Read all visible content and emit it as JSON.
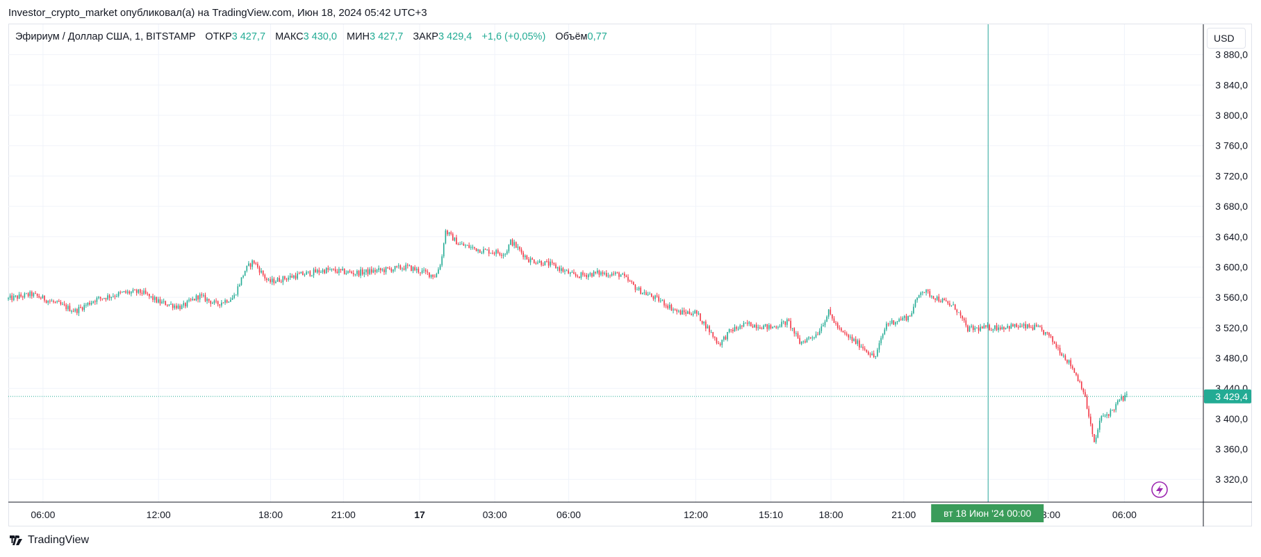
{
  "header": {
    "text": "Investor_crypto_market опубликовал(а) на TradingView.com, Июн 18, 2024 05:42 UTC+3"
  },
  "legend": {
    "symbol": "Эфириум / Доллар США, 1, BITSTAMP",
    "open_label": "ОТКР",
    "open": "3 427,7",
    "high_label": "МАКС",
    "high": "3 430,0",
    "low_label": "МИН",
    "low": "3 427,7",
    "close_label": "ЗАКР",
    "close": "3 429,4",
    "change": "+1,6 (+0,05%)",
    "volume_label": "Объём",
    "volume": "0,77"
  },
  "currency": "USD",
  "footer": {
    "brand": "TradingView"
  },
  "colors": {
    "up": "#22ab94",
    "down": "#f23645",
    "crosshair": "#26a69a",
    "grid": "#f0f3fa",
    "current_price": "#22ab94",
    "lightning": "#9c27b0"
  },
  "icons": {
    "lightning": "lightning-icon",
    "logo": "tradingview-logo-icon"
  },
  "chart_data": {
    "type": "candlestick",
    "title": "Эфириум / Доллар США, 1, BITSTAMP",
    "y_ticks": [
      "3 880,0",
      "3 840,0",
      "3 800,0",
      "3 760,0",
      "3 720,0",
      "3 680,0",
      "3 640,0",
      "3 600,0",
      "3 560,0",
      "3 520,0",
      "3 480,0",
      "3 440,0",
      "3 400,0",
      "3 360,0",
      "3 320,0"
    ],
    "y_tick_values": [
      3880,
      3840,
      3800,
      3760,
      3720,
      3680,
      3640,
      3600,
      3560,
      3520,
      3480,
      3440,
      3400,
      3360,
      3320
    ],
    "ylim": [
      3290,
      3920
    ],
    "x_ticks": [
      {
        "label": "06:00",
        "t": 0.03
      },
      {
        "label": "12:00",
        "t": 0.13
      },
      {
        "label": "18:00",
        "t": 0.227
      },
      {
        "label": "21:00",
        "t": 0.29
      },
      {
        "label": "17",
        "t": 0.356,
        "bold": true
      },
      {
        "label": "03:00",
        "t": 0.421
      },
      {
        "label": "06:00",
        "t": 0.485
      },
      {
        "label": "12:00",
        "t": 0.595
      },
      {
        "label": "15:10",
        "t": 0.66
      },
      {
        "label": "18:00",
        "t": 0.712
      },
      {
        "label": "21:00",
        "t": 0.775
      },
      {
        "label": "03:00",
        "t": 0.9
      },
      {
        "label": "06:00",
        "t": 0.966
      }
    ],
    "price_path": [
      [
        0.0,
        3558
      ],
      [
        0.02,
        3564
      ],
      [
        0.04,
        3553
      ],
      [
        0.058,
        3542
      ],
      [
        0.075,
        3557
      ],
      [
        0.1,
        3566
      ],
      [
        0.115,
        3567
      ],
      [
        0.13,
        3554
      ],
      [
        0.15,
        3547
      ],
      [
        0.165,
        3562
      ],
      [
        0.18,
        3551
      ],
      [
        0.195,
        3560
      ],
      [
        0.205,
        3596
      ],
      [
        0.212,
        3608
      ],
      [
        0.225,
        3580
      ],
      [
        0.25,
        3589
      ],
      [
        0.275,
        3596
      ],
      [
        0.3,
        3592
      ],
      [
        0.325,
        3596
      ],
      [
        0.345,
        3600
      ],
      [
        0.37,
        3588
      ],
      [
        0.375,
        3610
      ],
      [
        0.378,
        3648
      ],
      [
        0.39,
        3630
      ],
      [
        0.41,
        3622
      ],
      [
        0.43,
        3618
      ],
      [
        0.435,
        3634
      ],
      [
        0.45,
        3610
      ],
      [
        0.47,
        3603
      ],
      [
        0.49,
        3588
      ],
      [
        0.51,
        3592
      ],
      [
        0.53,
        3590
      ],
      [
        0.545,
        3570
      ],
      [
        0.565,
        3555
      ],
      [
        0.58,
        3540
      ],
      [
        0.595,
        3540
      ],
      [
        0.605,
        3520
      ],
      [
        0.615,
        3498
      ],
      [
        0.625,
        3516
      ],
      [
        0.64,
        3525
      ],
      [
        0.66,
        3520
      ],
      [
        0.675,
        3528
      ],
      [
        0.685,
        3500
      ],
      [
        0.7,
        3512
      ],
      [
        0.71,
        3540
      ],
      [
        0.72,
        3515
      ],
      [
        0.74,
        3494
      ],
      [
        0.75,
        3480
      ],
      [
        0.76,
        3525
      ],
      [
        0.78,
        3535
      ],
      [
        0.79,
        3570
      ],
      [
        0.805,
        3558
      ],
      [
        0.82,
        3546
      ],
      [
        0.83,
        3518
      ],
      [
        0.85,
        3520
      ],
      [
        0.87,
        3522
      ],
      [
        0.89,
        3520
      ],
      [
        0.9,
        3510
      ],
      [
        0.91,
        3490
      ],
      [
        0.92,
        3470
      ],
      [
        0.93,
        3440
      ],
      [
        0.935,
        3405
      ],
      [
        0.94,
        3365
      ],
      [
        0.945,
        3400
      ],
      [
        0.955,
        3410
      ],
      [
        0.962,
        3425
      ],
      [
        0.968,
        3429.4
      ]
    ],
    "crosshair": {
      "t": 0.848,
      "label": "вт 18 Июн '24   00:00"
    },
    "current_price": {
      "value": 3429.4,
      "label": "3 429,4"
    }
  }
}
